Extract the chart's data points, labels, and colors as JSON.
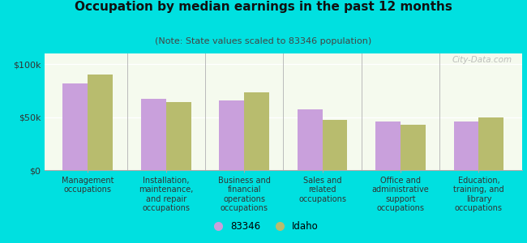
{
  "title": "Occupation by median earnings in the past 12 months",
  "subtitle": "(Note: State values scaled to 83346 population)",
  "categories": [
    "Management\noccupations",
    "Installation,\nmaintenance,\nand repair\noccupations",
    "Business and\nfinancial\noperations\noccupations",
    "Sales and\nrelated\noccupations",
    "Office and\nadministrative\nsupport\noccupations",
    "Education,\ntraining, and\nlibrary\noccupations"
  ],
  "values_83346": [
    82000,
    67000,
    66000,
    57000,
    46000,
    46000
  ],
  "values_idaho": [
    90000,
    64000,
    73000,
    47000,
    43000,
    50000
  ],
  "color_83346": "#c9a0dc",
  "color_idaho": "#b8bc6e",
  "legend_labels": [
    "83346",
    "Idaho"
  ],
  "ylim": [
    0,
    110000
  ],
  "yticks": [
    0,
    50000,
    100000
  ],
  "yticklabels": [
    "$0",
    "$50k",
    "$100k"
  ],
  "plot_bg_color": "#f5faee",
  "outer_background": "#00e0e0",
  "watermark": "City-Data.com",
  "bar_width": 0.32,
  "title_fontsize": 11,
  "subtitle_fontsize": 8,
  "tick_label_fontsize": 7,
  "ytick_fontsize": 8,
  "legend_fontsize": 8.5
}
